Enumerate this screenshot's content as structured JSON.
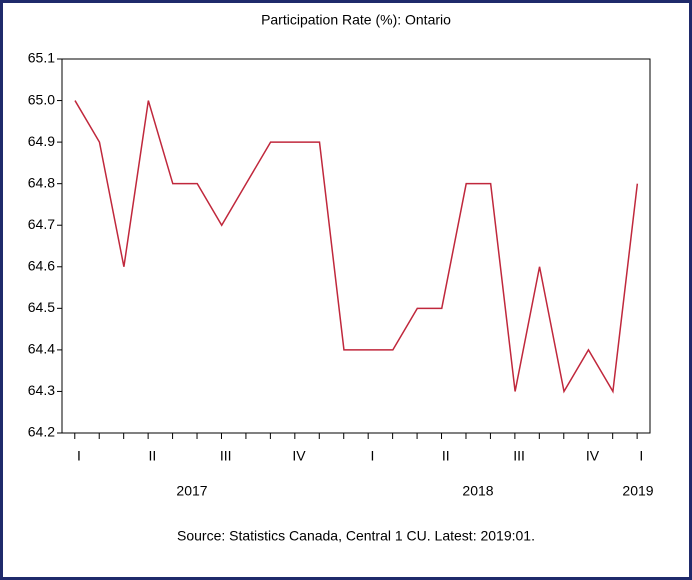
{
  "chart_data": {
    "type": "line",
    "title": "Participation Rate (%): Ontario",
    "source": "Source: Statistics Canada, Central 1 CU. Latest: 2019:01.",
    "categories": [
      "I",
      null,
      null,
      "II",
      null,
      null,
      "III",
      null,
      null,
      "IV",
      null,
      null,
      "I",
      null,
      null,
      "II",
      null,
      null,
      "III",
      null,
      null,
      "IV",
      null,
      "I"
    ],
    "year_labels": [
      "2017",
      "2018",
      "2019"
    ],
    "series": [
      {
        "name": "Participation Rate (%): Ontario",
        "color": "#c0283c",
        "values": [
          65,
          64.9,
          64.6,
          65,
          64.8,
          64.8,
          64.7,
          64.8,
          64.9,
          64.9,
          64.9,
          64.4,
          64.4,
          64.4,
          64.5,
          64.5,
          64.8,
          64.8,
          64.3,
          64.6,
          64.3,
          64.4,
          64.3,
          64.8
        ]
      }
    ],
    "ylim": [
      64.2,
      65.1
    ],
    "yticks": [
      64.2,
      64.3,
      64.4,
      64.5,
      64.6,
      64.7,
      64.8,
      64.9,
      {
        "value": 65,
        "label": "65.0"
      },
      65.1
    ],
    "grid": false
  }
}
